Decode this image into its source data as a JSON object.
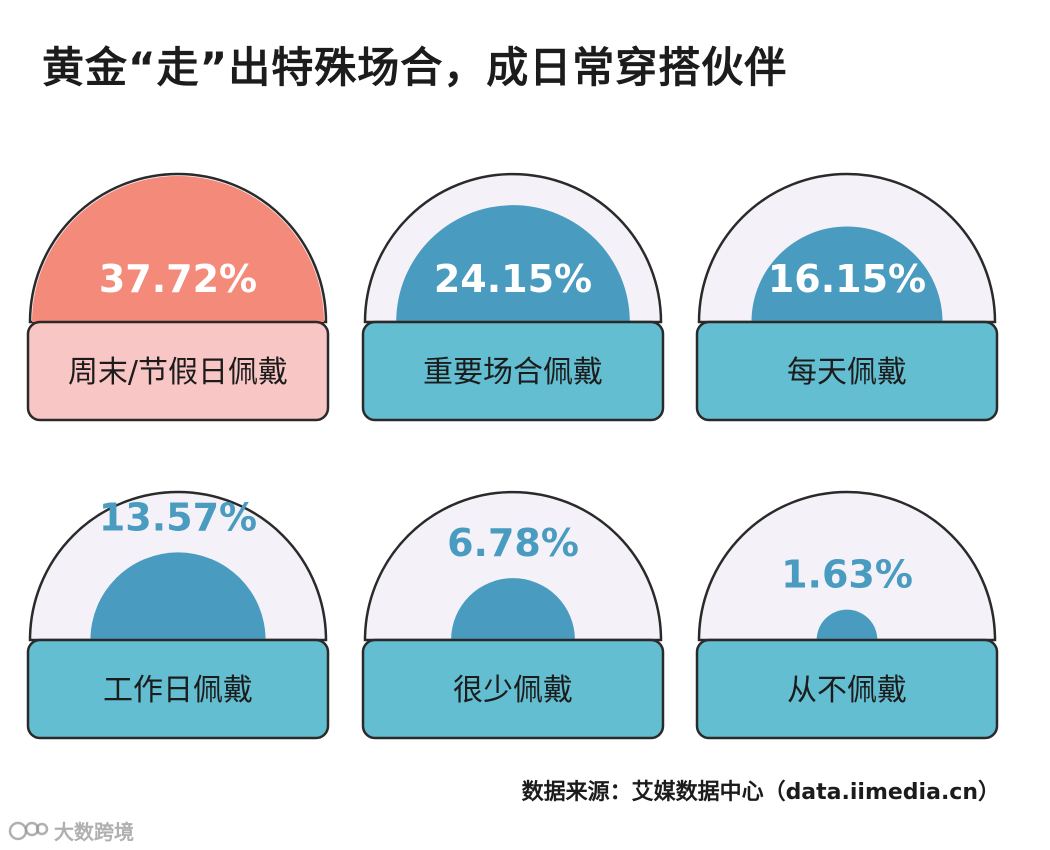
{
  "title": "黄金“走”出特殊场合，成日常穿搭伙伴",
  "source": "数据来源：艾媒数据中心（data.iimedia.cn）",
  "watermark": "大数跨境",
  "colors": {
    "highlight_fill": "#f48a79",
    "highlight_label_bg": "#f8c6c5",
    "fill": "#4a9bc0",
    "label_bg": "#62bed0",
    "dome_bg": "#f4f2f8",
    "outline": "#2a2a2a",
    "value_on_fill": "#ffffff",
    "value_outside": "#4a9bc0"
  },
  "chart_data": {
    "type": "gauge",
    "series": [
      {
        "name": "周末/节假日佩戴",
        "value": 37.72,
        "label": "37.72%",
        "highlight": true
      },
      {
        "name": "重要场合佩戴",
        "value": 24.15,
        "label": "24.15%",
        "highlight": false
      },
      {
        "name": "每天佩戴",
        "value": 16.15,
        "label": "16.15%",
        "highlight": false
      },
      {
        "name": "工作日佩戴",
        "value": 13.57,
        "label": "13.57%",
        "highlight": false
      },
      {
        "name": "很少佩戴",
        "value": 6.78,
        "label": "6.78%",
        "highlight": false
      },
      {
        "name": "从不佩戴",
        "value": 1.63,
        "label": "1.63%",
        "highlight": false
      }
    ],
    "max": 37.72
  }
}
